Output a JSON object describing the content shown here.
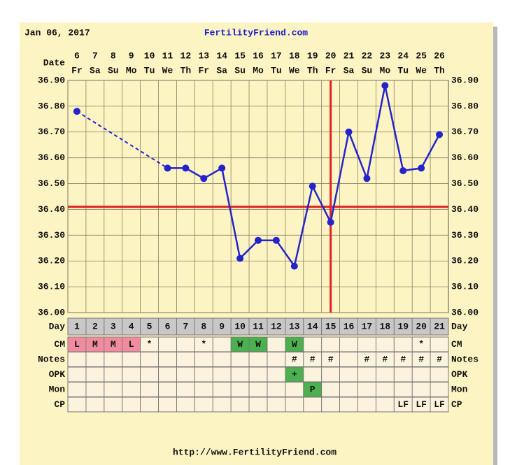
{
  "chart_data": {
    "type": "line",
    "date": "Jan 06, 2017",
    "site": "FertilityFriend.com",
    "x_label": "Date",
    "categories": [
      "6",
      "7",
      "8",
      "9",
      "10",
      "11",
      "12",
      "13",
      "14",
      "15",
      "16",
      "17",
      "18",
      "19",
      "20",
      "21",
      "22",
      "23",
      "24",
      "25",
      "26"
    ],
    "weekdays": [
      "Fr",
      "Sa",
      "Su",
      "Mo",
      "Tu",
      "We",
      "Th",
      "Fr",
      "Sa",
      "Su",
      "Mo",
      "Tu",
      "We",
      "Th",
      "Fr",
      "Sa",
      "Su",
      "Mo",
      "Tu",
      "We",
      "Th"
    ],
    "series": [
      {
        "color": "#2424cc",
        "values": [
          36.78,
          null,
          null,
          null,
          null,
          36.56,
          36.56,
          36.52,
          36.56,
          36.21,
          36.28,
          36.28,
          36.18,
          36.49,
          36.35,
          36.7,
          36.52,
          36.88,
          36.55,
          36.56,
          36.69
        ]
      }
    ],
    "ylim": [
      36.0,
      36.9
    ],
    "yticks": [
      {
        "value": 36.0,
        "label": "36.00"
      },
      {
        "value": 36.1,
        "label": "36.10"
      },
      {
        "value": 36.2,
        "label": "36.20"
      },
      {
        "value": 36.3,
        "label": "36.30"
      },
      {
        "value": 36.4,
        "label": "36.40"
      },
      {
        "value": 36.5,
        "label": "36.50"
      },
      {
        "value": 36.6,
        "label": "36.60"
      },
      {
        "value": 36.7,
        "label": "36.70"
      },
      {
        "value": 36.8,
        "label": "36.80"
      },
      {
        "value": 36.9,
        "label": "36.90"
      }
    ],
    "grid": true,
    "coverline": 36.41,
    "marker_color": "#e02020",
    "ovulation_date": "20",
    "rows": [
      {
        "label": "Day",
        "cells": [
          1,
          2,
          3,
          4,
          5,
          6,
          7,
          8,
          9,
          10,
          11,
          12,
          13,
          14,
          15,
          16,
          17,
          18,
          19,
          20,
          21
        ]
      },
      {
        "label": "CM",
        "cells": [
          "L",
          "M",
          "M",
          "L",
          "*",
          null,
          null,
          "*",
          null,
          "W",
          "W",
          null,
          "W",
          null,
          null,
          null,
          null,
          null,
          null,
          "*",
          null
        ]
      },
      {
        "label": "Notes",
        "cells": [
          null,
          null,
          null,
          null,
          null,
          null,
          null,
          null,
          null,
          null,
          null,
          null,
          "#",
          "#",
          "#",
          null,
          "#",
          "#",
          "#",
          "#",
          "#"
        ]
      },
      {
        "label": "OPK",
        "cells": [
          null,
          null,
          null,
          null,
          null,
          null,
          null,
          null,
          null,
          null,
          null,
          null,
          "+",
          null,
          null,
          null,
          null,
          null,
          null,
          null,
          null
        ]
      },
      {
        "label": "Mon",
        "cells": [
          null,
          null,
          null,
          null,
          null,
          null,
          null,
          null,
          null,
          null,
          null,
          null,
          null,
          "P",
          null,
          null,
          null,
          null,
          null,
          null,
          null
        ]
      },
      {
        "label": "CP",
        "cells": [
          null,
          null,
          null,
          null,
          null,
          null,
          null,
          null,
          null,
          null,
          null,
          null,
          null,
          null,
          null,
          null,
          null,
          null,
          "LF",
          "LF",
          "LF"
        ]
      }
    ],
    "cell_colors": {
      "L": "#f08ca0",
      "M": "#f08ca0",
      "W": "#4caf50",
      "+": "#4caf50",
      "P": "#4caf50"
    },
    "footer": "http://www.FertilityFriend.com"
  }
}
